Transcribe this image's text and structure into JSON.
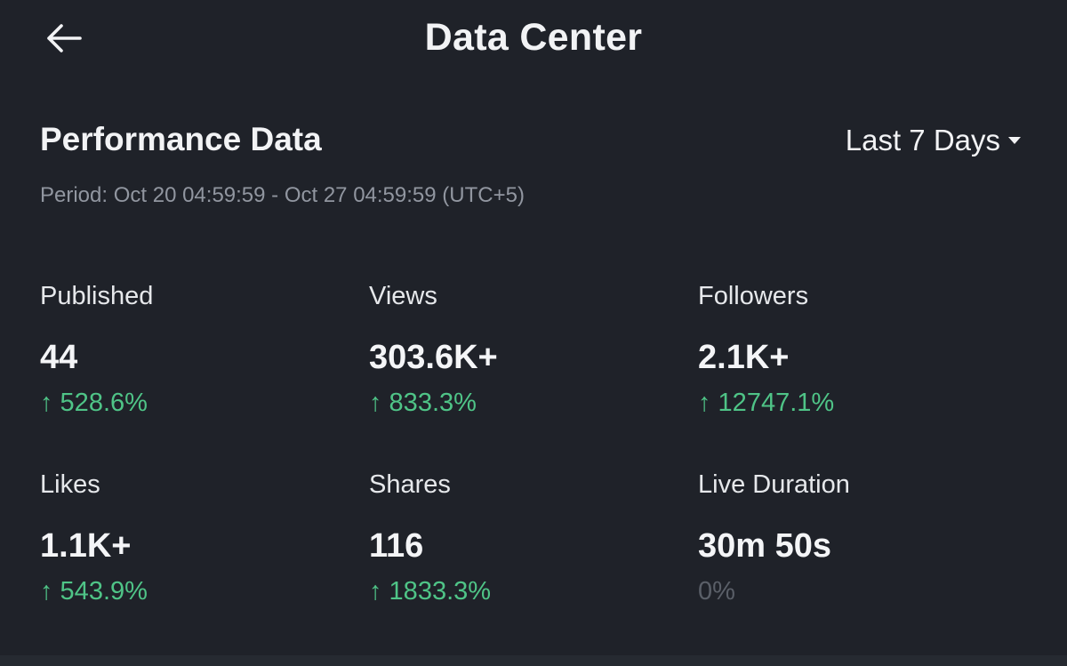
{
  "header": {
    "title": "Data Center",
    "back_icon": "arrow-left-icon"
  },
  "section": {
    "title": "Performance Data",
    "range": "Last 7 Days",
    "period": "Period: Oct 20 04:59:59 - Oct 27 04:59:59 (UTC+5)"
  },
  "metrics": [
    {
      "label": "Published",
      "value": "44",
      "change": "↑ 528.6%"
    },
    {
      "label": "Views",
      "value": "303.6K+",
      "change": "↑ 833.3%"
    },
    {
      "label": "Followers",
      "value": "2.1K+",
      "change": "↑ 12747.1%"
    },
    {
      "label": "Likes",
      "value": "1.1K+",
      "change": "↑ 543.9%"
    },
    {
      "label": "Shares",
      "value": "116",
      "change": "↑ 1833.3%"
    },
    {
      "label": "Live Duration",
      "value": "30m 50s",
      "change": "0%"
    }
  ],
  "colors": {
    "background": "#1f2229",
    "positive": "#4fc487",
    "neutral": "#5a5f68"
  }
}
